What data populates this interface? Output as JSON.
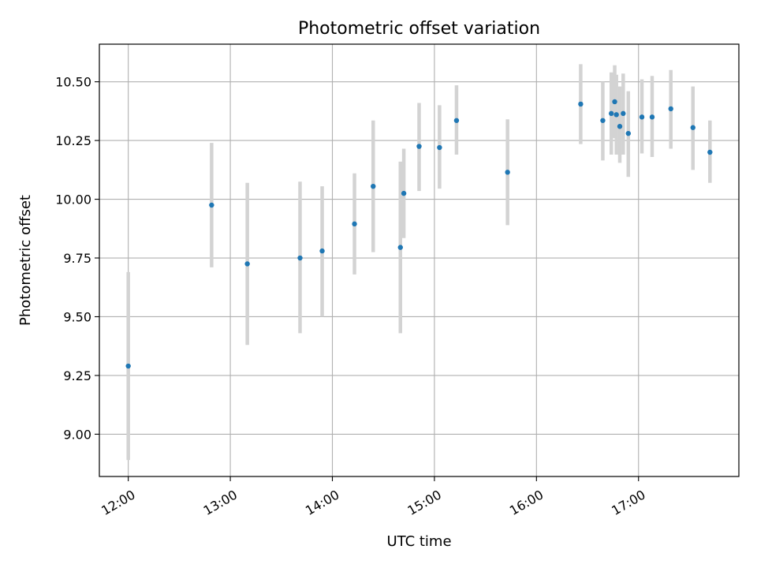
{
  "chart_data": {
    "type": "scatter",
    "title": "Photometric offset variation",
    "xlabel": "UTC time",
    "ylabel": "Photometric offset",
    "xlim": [
      "11:43",
      "17:59"
    ],
    "ylim": [
      8.82,
      10.66
    ],
    "x_ticks": [
      "12:00",
      "13:00",
      "14:00",
      "15:00",
      "16:00",
      "17:00"
    ],
    "y_ticks": [
      "9.00",
      "9.25",
      "9.50",
      "9.75",
      "10.00",
      "10.25",
      "10.50"
    ],
    "grid": true,
    "colors": {
      "point": "#1f77b4",
      "errorbar": "#d3d3d3",
      "grid": "#b0b0b0"
    },
    "points": [
      {
        "t": "12:00",
        "y": 9.29,
        "lo": 8.89,
        "hi": 9.69
      },
      {
        "t": "12:49",
        "y": 9.975,
        "lo": 9.71,
        "hi": 10.24
      },
      {
        "t": "13:10",
        "y": 9.725,
        "lo": 9.38,
        "hi": 10.07
      },
      {
        "t": "13:41",
        "y": 9.75,
        "lo": 9.43,
        "hi": 10.075
      },
      {
        "t": "13:54",
        "y": 9.78,
        "lo": 9.5,
        "hi": 10.055
      },
      {
        "t": "14:13",
        "y": 9.895,
        "lo": 9.68,
        "hi": 10.11
      },
      {
        "t": "14:24",
        "y": 10.055,
        "lo": 9.775,
        "hi": 10.335
      },
      {
        "t": "14:40",
        "y": 9.795,
        "lo": 9.43,
        "hi": 10.16
      },
      {
        "t": "14:42",
        "y": 10.025,
        "lo": 9.835,
        "hi": 10.215
      },
      {
        "t": "14:51",
        "y": 10.225,
        "lo": 10.035,
        "hi": 10.41
      },
      {
        "t": "15:03",
        "y": 10.22,
        "lo": 10.045,
        "hi": 10.4
      },
      {
        "t": "15:13",
        "y": 10.335,
        "lo": 10.19,
        "hi": 10.485
      },
      {
        "t": "15:43",
        "y": 10.115,
        "lo": 9.89,
        "hi": 10.34
      },
      {
        "t": "16:26",
        "y": 10.405,
        "lo": 10.235,
        "hi": 10.575
      },
      {
        "t": "16:39",
        "y": 10.335,
        "lo": 10.165,
        "hi": 10.5
      },
      {
        "t": "16:44",
        "y": 10.365,
        "lo": 10.19,
        "hi": 10.54
      },
      {
        "t": "16:46",
        "y": 10.415,
        "lo": 10.26,
        "hi": 10.57
      },
      {
        "t": "16:47",
        "y": 10.36,
        "lo": 10.19,
        "hi": 10.53
      },
      {
        "t": "16:49",
        "y": 10.31,
        "lo": 10.155,
        "hi": 10.48
      },
      {
        "t": "16:51",
        "y": 10.365,
        "lo": 10.19,
        "hi": 10.535
      },
      {
        "t": "16:54",
        "y": 10.28,
        "lo": 10.095,
        "hi": 10.46
      },
      {
        "t": "17:02",
        "y": 10.35,
        "lo": 10.195,
        "hi": 10.51
      },
      {
        "t": "17:08",
        "y": 10.35,
        "lo": 10.18,
        "hi": 10.525
      },
      {
        "t": "17:19",
        "y": 10.385,
        "lo": 10.215,
        "hi": 10.55
      },
      {
        "t": "17:32",
        "y": 10.305,
        "lo": 10.125,
        "hi": 10.48
      },
      {
        "t": "17:42",
        "y": 10.2,
        "lo": 10.07,
        "hi": 10.335
      }
    ]
  }
}
